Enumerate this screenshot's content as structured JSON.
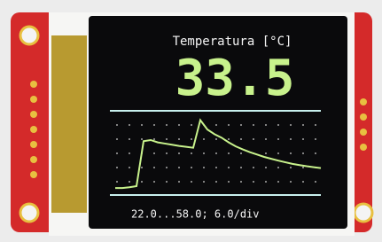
{
  "header": {
    "title": "Temperatura [°C]"
  },
  "reading": "33.5",
  "footer": "22.0...58.0; 6.0/div",
  "chart_data": {
    "type": "line",
    "color": "#c8f28c",
    "values": [
      25,
      25,
      25.3,
      25.8,
      45,
      45.5,
      44.5,
      44,
      43.5,
      43,
      42.6,
      42.2,
      54,
      50,
      48,
      46.5,
      44.5,
      42.8,
      41.5,
      40.3,
      39.3,
      38.3,
      37.5,
      36.7,
      36,
      35.3,
      34.8,
      34.3,
      33.9,
      33.5
    ],
    "ylim": [
      22,
      58
    ]
  }
}
